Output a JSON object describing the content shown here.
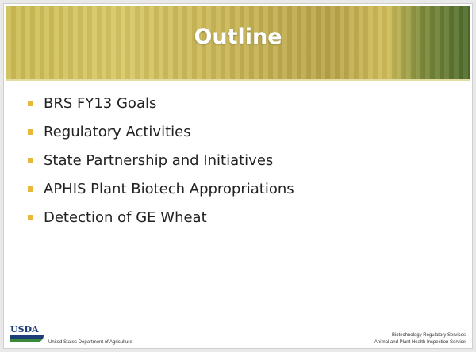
{
  "slide": {
    "title": "Outline",
    "bullets": [
      "BRS FY13 Goals",
      "Regulatory Activities",
      "State Partnership and Initiatives",
      "APHIS Plant Biotech Appropriations",
      "Detection of GE Wheat"
    ],
    "footer": {
      "logo": "USDA",
      "left": "United States Department of Agriculture",
      "right": [
        "Biotechnology Regulatory Services",
        "Animal and Plant Health Inspection Service"
      ]
    }
  }
}
